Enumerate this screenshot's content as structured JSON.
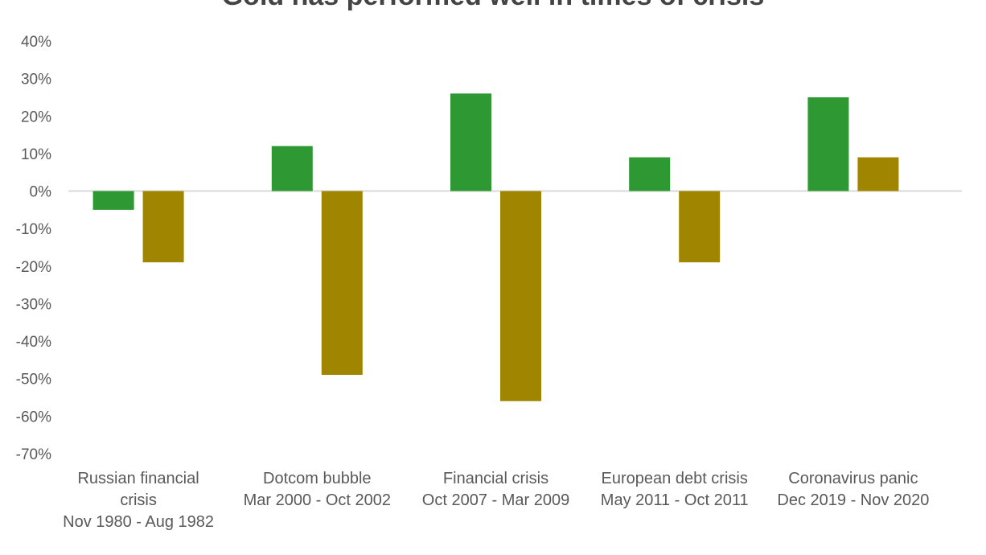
{
  "chart_data": {
    "type": "bar",
    "title": "Gold has performed well in times of crisis",
    "categories": [
      [
        "Russian financial",
        "crisis",
        "Nov 1980 - Aug 1982"
      ],
      [
        "Dotcom bubble",
        "Mar 2000 - Oct 2002"
      ],
      [
        "Financial crisis",
        "Oct 2007 - Mar 2009"
      ],
      [
        "European debt crisis",
        "May 2011 - Oct 2011"
      ],
      [
        "Coronavirus panic",
        "Dec 2019 - Nov 2020"
      ]
    ],
    "series": [
      {
        "color": "#2e9933",
        "values": [
          -5,
          12,
          26,
          9,
          25
        ]
      },
      {
        "color": "#a08600",
        "values": [
          -19,
          -49,
          -56,
          -19,
          9
        ]
      }
    ],
    "ylim": [
      -70,
      40
    ],
    "yticks": [
      "40%",
      "30%",
      "20%",
      "10%",
      "0%",
      "-10%",
      "-20%",
      "-30%",
      "-40%",
      "-50%",
      "-60%",
      "-70%"
    ],
    "grid": false
  }
}
